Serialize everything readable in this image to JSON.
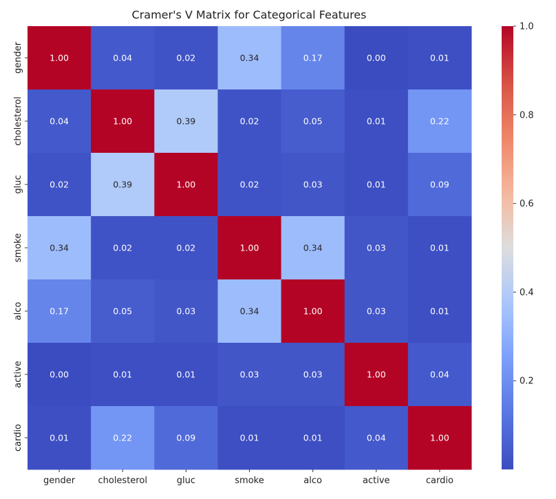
{
  "chart_data": {
    "type": "heatmap",
    "title": "Cramer's V Matrix for Categorical Features",
    "x_labels": [
      "gender",
      "cholesterol",
      "gluc",
      "smoke",
      "alco",
      "active",
      "cardio"
    ],
    "y_labels": [
      "gender",
      "cholesterol",
      "gluc",
      "smoke",
      "alco",
      "active",
      "cardio"
    ],
    "values": [
      [
        1.0,
        0.04,
        0.02,
        0.34,
        0.17,
        0.0,
        0.01
      ],
      [
        0.04,
        1.0,
        0.39,
        0.02,
        0.05,
        0.01,
        0.22
      ],
      [
        0.02,
        0.39,
        1.0,
        0.02,
        0.03,
        0.01,
        0.09
      ],
      [
        0.34,
        0.02,
        0.02,
        1.0,
        0.34,
        0.03,
        0.01
      ],
      [
        0.17,
        0.05,
        0.03,
        0.34,
        1.0,
        0.03,
        0.01
      ],
      [
        0.0,
        0.01,
        0.01,
        0.03,
        0.03,
        1.0,
        0.04
      ],
      [
        0.01,
        0.22,
        0.09,
        0.01,
        0.01,
        0.04,
        1.0
      ]
    ],
    "colormap": "coolwarm",
    "vmin": 0.0,
    "vmax": 1.0,
    "colorbar_ticks": [
      "0.2",
      "0.4",
      "0.6",
      "0.8",
      "1.0"
    ],
    "annotation_format": "0.00"
  }
}
